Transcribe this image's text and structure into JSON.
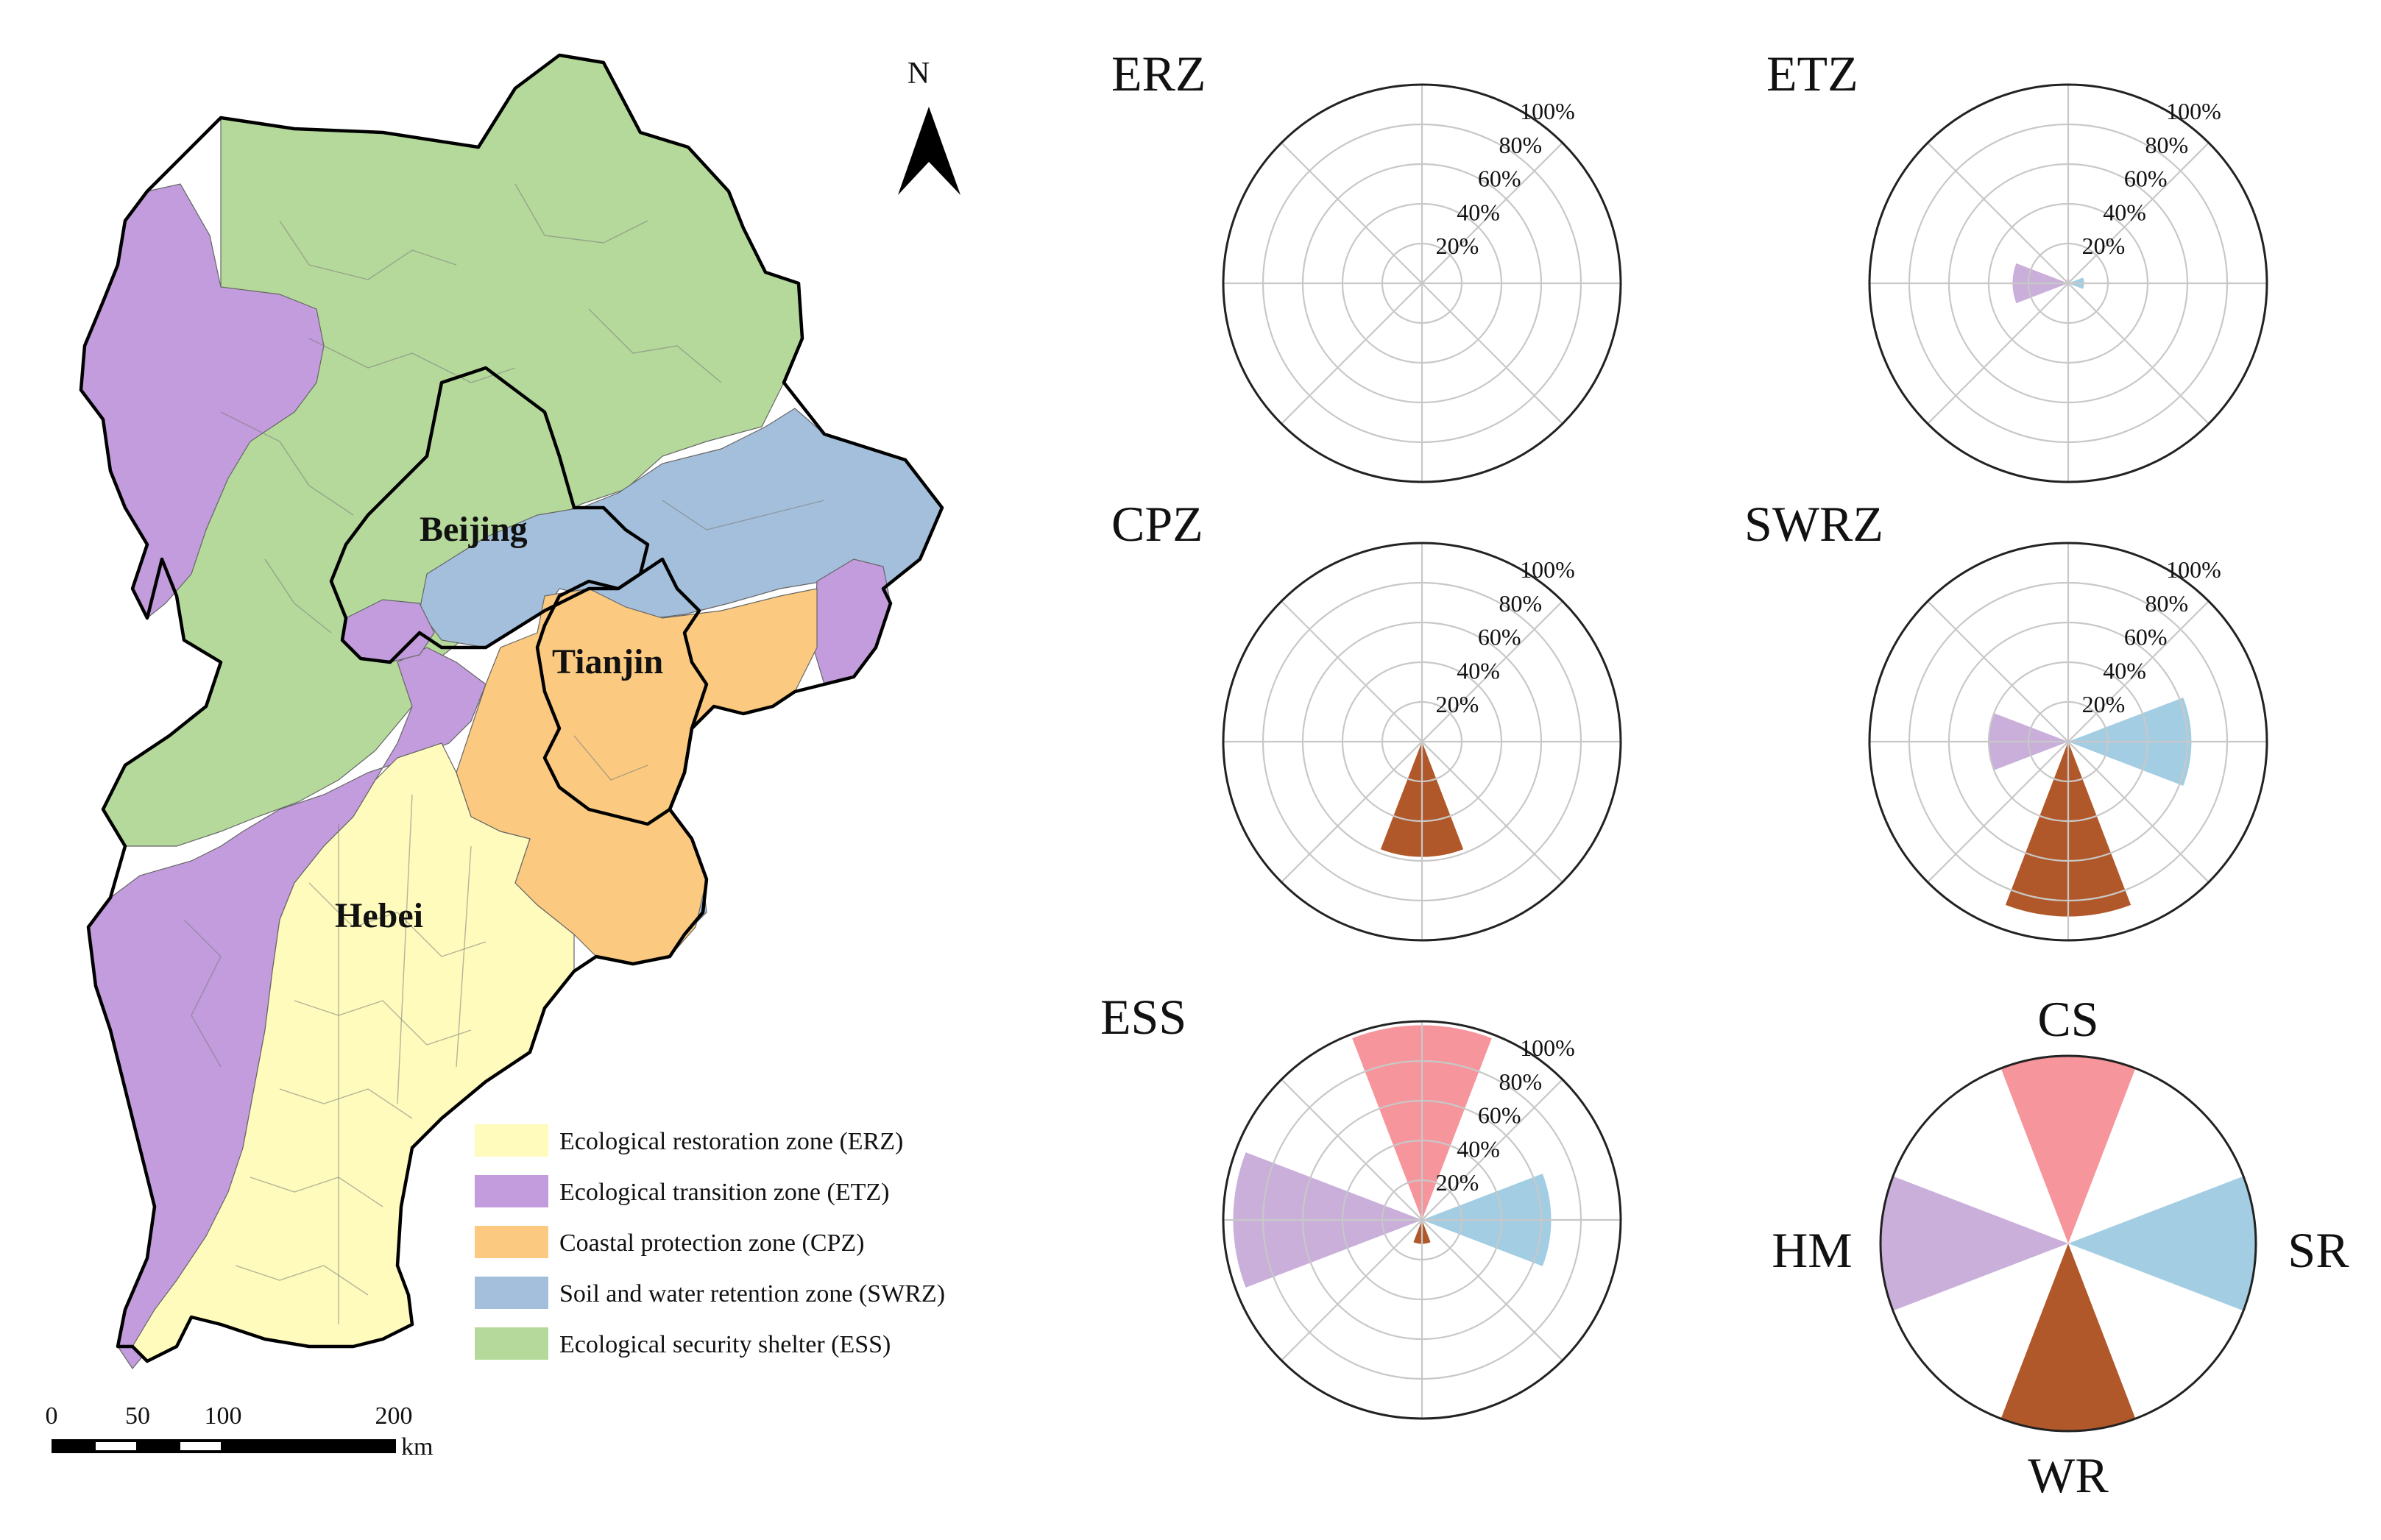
{
  "map": {
    "north_label": "N",
    "provinces": {
      "beijing": "Beijing",
      "tianjin": "Tianjin",
      "hebei": "Hebei"
    },
    "legend": [
      {
        "label": "Ecological restoration zone (ERZ)",
        "color": "#fefbbd"
      },
      {
        "label": "Ecological transition zone (ETZ)",
        "color": "#c29cdc"
      },
      {
        "label": "Coastal protection zone (CPZ)",
        "color": "#fbca80"
      },
      {
        "label": "Soil and water retention zone (SWRZ)",
        "color": "#a4bfdb"
      },
      {
        "label": "Ecological security shelter (ESS)",
        "color": "#b5d99b"
      }
    ],
    "scale": {
      "ticks": [
        "0",
        "50",
        "100",
        "200"
      ],
      "unit": "km"
    }
  },
  "radar": {
    "ring_labels": [
      "20%",
      "40%",
      "60%",
      "80%",
      "100%"
    ],
    "categories": [
      "CS",
      "SR",
      "WR",
      "HM"
    ],
    "colors": {
      "CS": "#f6959b",
      "SR": "#a3cde3",
      "WR": "#b1582a",
      "HM": "#c9afd9"
    },
    "panels": [
      {
        "title": "ERZ",
        "values": {
          "CS": 0,
          "SR": 0,
          "WR": 0,
          "HM": 0
        }
      },
      {
        "title": "ETZ",
        "values": {
          "CS": 2,
          "SR": 8,
          "WR": 1,
          "HM": 28
        }
      },
      {
        "title": "CPZ",
        "values": {
          "CS": 0,
          "SR": 0,
          "WR": 58,
          "HM": 0
        }
      },
      {
        "title": "SWRZ",
        "values": {
          "CS": 0,
          "SR": 62,
          "WR": 88,
          "HM": 40
        }
      },
      {
        "title": "ESS",
        "values": {
          "CS": 98,
          "SR": 65,
          "WR": 12,
          "HM": 95
        }
      }
    ],
    "legend_panel": {
      "top": "CS",
      "right": "SR",
      "bottom": "WR",
      "left": "HM"
    }
  }
}
